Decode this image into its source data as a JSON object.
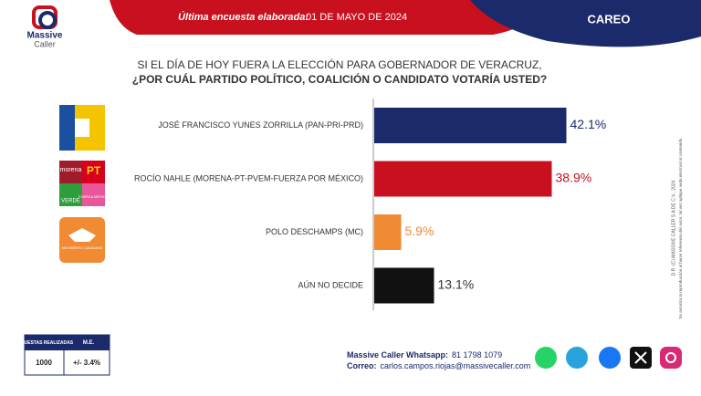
{
  "brand": {
    "name_1": "Massive",
    "name_2": "Caller"
  },
  "header": {
    "label": "Última encuesta elaborada:",
    "date": "01 DE MAYO DE 2024",
    "tab": "CAREO"
  },
  "chart_data": {
    "type": "bar",
    "orientation": "horizontal",
    "title": "SI EL DÍA DE HOY FUERA LA ELECCIÓN PARA GOBERNADOR DE VERACRUZ,",
    "subtitle": "¿POR CUÁL PARTIDO POLÍTICO, COALICIÓN O CANDIDATO VOTARÍA USTED?",
    "categories": [
      "JOSÉ FRANCISCO YUNES ZORRILLA (PAN-PRI-PRD)",
      "ROCÍO NAHLE (MORENA-PT-PVEM-FUERZA POR MÉXICO)",
      "POLO DESCHAMPS (MC)",
      "AÚN NO DECIDE"
    ],
    "values": [
      42.1,
      38.9,
      5.9,
      13.1
    ],
    "value_labels": [
      "42.1%",
      "38.9%",
      "5.9%",
      "13.1%"
    ],
    "colors": [
      "#1b2a6b",
      "#c8101e",
      "#f08a33",
      "#111111"
    ],
    "label_colors": [
      "#1b2a6b",
      "#c8101e",
      "#f08a33",
      "#333333"
    ]
  },
  "logos": {
    "morena": "morena",
    "pt": "PT",
    "verde": "VERDE",
    "fuerza": "FUERZA MÉXICO",
    "mc": "MOVIMIENTO CIUDADANO"
  },
  "sample": {
    "headers": [
      "ENCUESTAS REALIZADAS",
      "M.E."
    ],
    "row": [
      "1000",
      "+/- 3.4%"
    ]
  },
  "contact": {
    "whatsapp_label": "Massive Caller Whatsapp:",
    "whatsapp": "81 1798 1079",
    "email_label": "Correo:",
    "email": "carlos.campos.riojas@massivecaller.com"
  },
  "legal": {
    "line1": "D.R. (C) MASSIVE CALLER S.A DE C.V., 2024",
    "line2": "Se autoriza la reproducción al hacer referencia del autor, tal vez aplique veda electoral al contenido."
  }
}
